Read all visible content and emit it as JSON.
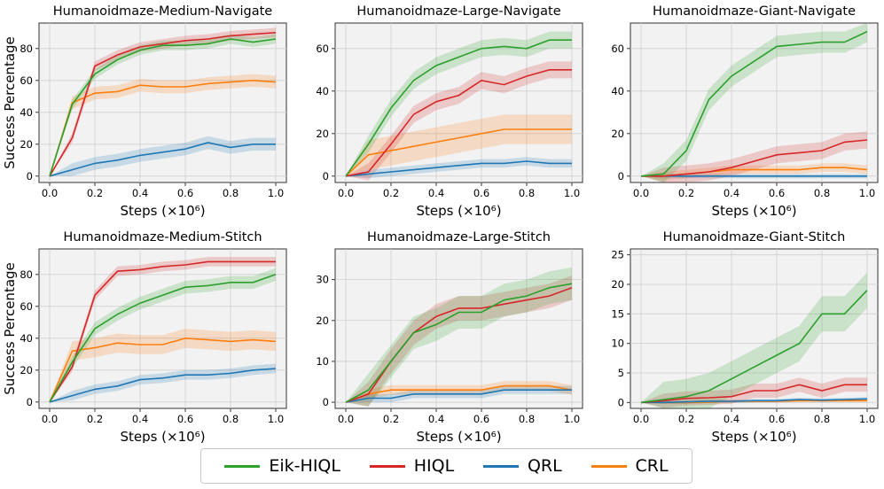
{
  "colors": {
    "Eik-HIQL": "#2ca02c",
    "HIQL": "#d62728",
    "QRL": "#1f77b4",
    "CRL": "#ff7f0e",
    "panel_bg": "#f2f2f2",
    "grid": "#cfcfcf"
  },
  "legend": [
    "Eik-HIQL",
    "HIQL",
    "QRL",
    "CRL"
  ],
  "chart_data": [
    {
      "type": "line",
      "title": "Humanoidmaze-Medium-Navigate",
      "xlabel": "Steps (×10⁶)",
      "ylabel": "Success Percentage",
      "xlim": [
        0,
        1.0
      ],
      "ylim": [
        -4,
        96
      ],
      "xticks": [
        "0.0",
        "0.2",
        "0.4",
        "0.6",
        "0.8",
        "1.0"
      ],
      "yticks": [
        0,
        20,
        40,
        60,
        80
      ],
      "x": [
        0.0,
        0.1,
        0.2,
        0.3,
        0.4,
        0.5,
        0.6,
        0.7,
        0.8,
        0.9,
        1.0
      ],
      "series": [
        {
          "name": "Eik-HIQL",
          "values": [
            0,
            45,
            64,
            73,
            79,
            82,
            82,
            83,
            86,
            84,
            86
          ],
          "band": 3
        },
        {
          "name": "HIQL",
          "values": [
            0,
            24,
            69,
            76,
            81,
            83,
            85,
            86,
            88,
            89,
            90
          ],
          "band": 3
        },
        {
          "name": "QRL",
          "values": [
            0,
            4,
            8,
            10,
            13,
            15,
            17,
            21,
            18,
            20,
            20
          ],
          "band": 4
        },
        {
          "name": "CRL",
          "values": [
            0,
            46,
            52,
            53,
            57,
            56,
            56,
            58,
            59,
            60,
            59
          ],
          "band": 4
        }
      ]
    },
    {
      "type": "line",
      "title": "Humanoidmaze-Large-Navigate",
      "xlabel": "Steps (×10⁶)",
      "ylabel": "",
      "xlim": [
        0,
        1.0
      ],
      "ylim": [
        -3,
        72
      ],
      "xticks": [
        "0.0",
        "0.2",
        "0.4",
        "0.6",
        "0.8",
        "1.0"
      ],
      "yticks": [
        0,
        20,
        40,
        60
      ],
      "x": [
        0.0,
        0.1,
        0.2,
        0.3,
        0.4,
        0.5,
        0.6,
        0.7,
        0.8,
        0.9,
        1.0
      ],
      "series": [
        {
          "name": "Eik-HIQL",
          "values": [
            0,
            15,
            32,
            45,
            52,
            56,
            60,
            61,
            60,
            64,
            64
          ],
          "band": 4
        },
        {
          "name": "HIQL",
          "values": [
            0,
            2,
            15,
            29,
            35,
            38,
            45,
            43,
            47,
            50,
            50
          ],
          "band": 4
        },
        {
          "name": "QRL",
          "values": [
            0,
            1,
            2,
            3,
            4,
            5,
            6,
            6,
            7,
            6,
            6
          ],
          "band": 2
        },
        {
          "name": "CRL",
          "values": [
            0,
            10,
            12,
            14,
            16,
            18,
            20,
            22,
            22,
            22,
            22
          ],
          "band": 7
        }
      ]
    },
    {
      "type": "line",
      "title": "Humanoidmaze-Giant-Navigate",
      "xlabel": "Steps (×10⁶)",
      "ylabel": "",
      "xlim": [
        0,
        1.0
      ],
      "ylim": [
        -3,
        72
      ],
      "xticks": [
        "0.0",
        "0.2",
        "0.4",
        "0.6",
        "0.8",
        "1.0"
      ],
      "yticks": [
        0,
        20,
        40,
        60
      ],
      "x": [
        0.0,
        0.1,
        0.2,
        0.3,
        0.4,
        0.5,
        0.6,
        0.7,
        0.8,
        0.9,
        1.0
      ],
      "series": [
        {
          "name": "Eik-HIQL",
          "values": [
            0,
            1,
            12,
            36,
            47,
            54,
            61,
            62,
            63,
            63,
            68
          ],
          "band": 5
        },
        {
          "name": "HIQL",
          "values": [
            0,
            0,
            1,
            2,
            4,
            7,
            10,
            11,
            12,
            16,
            17
          ],
          "band": 4
        },
        {
          "name": "QRL",
          "values": [
            0,
            0,
            0,
            0,
            0,
            0,
            0,
            0,
            0,
            0,
            0
          ],
          "band": 1
        },
        {
          "name": "CRL",
          "values": [
            0,
            0,
            1,
            2,
            3,
            3,
            3,
            3,
            4,
            4,
            3
          ],
          "band": 2
        }
      ]
    },
    {
      "type": "line",
      "title": "Humanoidmaze-Medium-Stitch",
      "xlabel": "Steps (×10⁶)",
      "ylabel": "Success Percentage",
      "xlim": [
        0,
        1.0
      ],
      "ylim": [
        -4,
        96
      ],
      "xticks": [
        "0.0",
        "0.2",
        "0.4",
        "0.6",
        "0.8",
        "1.0"
      ],
      "yticks": [
        0,
        20,
        40,
        60,
        80
      ],
      "x": [
        0.0,
        0.1,
        0.2,
        0.3,
        0.4,
        0.5,
        0.6,
        0.7,
        0.8,
        0.9,
        1.0
      ],
      "series": [
        {
          "name": "Eik-HIQL",
          "values": [
            0,
            25,
            46,
            55,
            62,
            67,
            72,
            73,
            75,
            75,
            80
          ],
          "band": 4
        },
        {
          "name": "HIQL",
          "values": [
            0,
            22,
            67,
            82,
            83,
            85,
            86,
            88,
            88,
            88,
            88
          ],
          "band": 3
        },
        {
          "name": "QRL",
          "values": [
            0,
            4,
            8,
            10,
            14,
            15,
            17,
            17,
            18,
            20,
            21
          ],
          "band": 3
        },
        {
          "name": "CRL",
          "values": [
            0,
            32,
            34,
            37,
            36,
            36,
            40,
            39,
            38,
            39,
            38
          ],
          "band": 6
        }
      ]
    },
    {
      "type": "line",
      "title": "Humanoidmaze-Large-Stitch",
      "xlabel": "Steps (×10⁶)",
      "ylabel": "",
      "xlim": [
        0,
        1.0
      ],
      "ylim": [
        -1.5,
        37.5
      ],
      "xticks": [
        "0.0",
        "0.2",
        "0.4",
        "0.6",
        "0.8",
        "1.0"
      ],
      "yticks": [
        0,
        10,
        20,
        30
      ],
      "x": [
        0.0,
        0.1,
        0.2,
        0.3,
        0.4,
        0.5,
        0.6,
        0.7,
        0.8,
        0.9,
        1.0
      ],
      "series": [
        {
          "name": "Eik-HIQL",
          "values": [
            0,
            3,
            10,
            17,
            19,
            22,
            22,
            25,
            26,
            28,
            29
          ],
          "band": 4
        },
        {
          "name": "HIQL",
          "values": [
            0,
            2,
            10,
            17,
            21,
            23,
            23,
            24,
            25,
            26,
            28
          ],
          "band": 3
        },
        {
          "name": "QRL",
          "values": [
            0,
            1,
            1,
            2,
            2,
            2,
            2,
            3,
            3,
            3,
            3
          ],
          "band": 1
        },
        {
          "name": "CRL",
          "values": [
            0,
            2,
            3,
            3,
            3,
            3,
            3,
            4,
            4,
            4,
            3
          ],
          "band": 1.2
        }
      ]
    },
    {
      "type": "line",
      "title": "Humanoidmaze-Giant-Stitch",
      "xlabel": "Steps (×10⁶)",
      "ylabel": "",
      "xlim": [
        0,
        1.0
      ],
      "ylim": [
        -1,
        26
      ],
      "xticks": [
        "0.0",
        "0.2",
        "0.4",
        "0.6",
        "0.8",
        "1.0"
      ],
      "yticks": [
        0,
        5,
        10,
        15,
        20,
        25
      ],
      "x": [
        0.0,
        0.1,
        0.2,
        0.3,
        0.4,
        0.5,
        0.6,
        0.7,
        0.8,
        0.9,
        1.0
      ],
      "series": [
        {
          "name": "Eik-HIQL",
          "values": [
            0,
            0.5,
            1,
            2,
            4,
            6,
            8,
            10,
            15,
            15,
            19
          ],
          "band": 3
        },
        {
          "name": "HIQL",
          "values": [
            0,
            0.3,
            0.7,
            0.8,
            1,
            2,
            2,
            3,
            2,
            3,
            3
          ],
          "band": 1.2
        },
        {
          "name": "QRL",
          "values": [
            0,
            0,
            0.1,
            0.2,
            0.2,
            0.3,
            0.3,
            0.5,
            0.4,
            0.5,
            0.6
          ],
          "band": 0.3
        },
        {
          "name": "CRL",
          "values": [
            0,
            0,
            0,
            0.1,
            0.2,
            0.2,
            0.2,
            0.3,
            0.3,
            0.3,
            0.3
          ],
          "band": 0.2
        }
      ]
    }
  ]
}
